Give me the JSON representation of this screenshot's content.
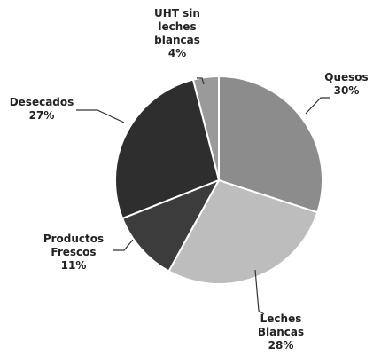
{
  "chart_data": {
    "type": "pie",
    "categories": [
      "Quesos",
      "Leches Blancas",
      "Productos Frescos",
      "Desecados",
      "UHT sin leches blancas"
    ],
    "values": [
      30,
      28,
      11,
      27,
      4
    ],
    "value_labels": [
      "30%",
      "28%",
      "11%",
      "27%",
      "4%"
    ],
    "colors": [
      "#8c8c8c",
      "#bdbdbd",
      "#3c3c3c",
      "#2e2e2e",
      "#9a9a9a"
    ]
  }
}
